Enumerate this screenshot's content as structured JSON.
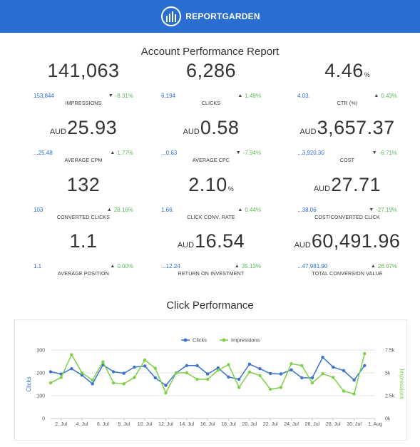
{
  "header": {
    "logo_text": "REPORTGARDEN"
  },
  "report_title": "Account Performance Report",
  "metrics": [
    {
      "currency": "",
      "value": "141,063",
      "unit": "",
      "prev": "153,844",
      "change": "-8.31%",
      "dir": "down",
      "label": "IMPRESSIONS"
    },
    {
      "currency": "",
      "value": "6,286",
      "unit": "",
      "prev": "6,194",
      "change": "1.49%",
      "dir": "up",
      "label": "CLICKS"
    },
    {
      "currency": "",
      "value": "4.46",
      "unit": "%",
      "prev": "4.03.",
      "change": "0.43%",
      "dir": "up",
      "label": "CTR (%)"
    },
    {
      "currency": "AUD",
      "value": "25.93",
      "unit": "",
      "prev": "...25.48",
      "change": "1.77%",
      "dir": "up",
      "label": "AVERAGE CPM"
    },
    {
      "currency": "AUD",
      "value": "0.58",
      "unit": "",
      "prev": "...0.63",
      "change": "-7.94%",
      "dir": "down",
      "label": "AVERAGE CPC"
    },
    {
      "currency": "AUD",
      "value": "3,657.37",
      "unit": "",
      "prev": "...3,920.30",
      "change": "-6.71%",
      "dir": "down",
      "label": "COST"
    },
    {
      "currency": "",
      "value": "132",
      "unit": "",
      "prev": "103",
      "change": "28.16%",
      "dir": "up",
      "label": "CONVERTED CLICKS"
    },
    {
      "currency": "",
      "value": "2.10",
      "unit": "%",
      "prev": "1.66.",
      "change": "0.44%",
      "dir": "up",
      "label": "CLICK CONV. RATE"
    },
    {
      "currency": "AUD",
      "value": "27.71",
      "unit": "",
      "prev": "...38.06",
      "change": "-27.19%",
      "dir": "down",
      "label": "COST/CONVERTED CLICK"
    },
    {
      "currency": "",
      "value": "1.1",
      "unit": "",
      "prev": "1.1",
      "change": "0.00%",
      "dir": "up",
      "label": "AVERAGE POSITION"
    },
    {
      "currency": "AUD",
      "value": "16.54",
      "unit": "",
      "prev": "...12.24",
      "change": "35.13%",
      "dir": "up",
      "label": "RETURN ON INVESTMENT"
    },
    {
      "currency": "AUD",
      "value": "60,491.96",
      "unit": "",
      "prev": "...47,981.90",
      "change": "26.07%",
      "dir": "up",
      "label": "TOTAL CONVERSION VALUE"
    }
  ],
  "chart_title": "Click Performance",
  "colors": {
    "header": "#2a6ed1",
    "clicks": "#3a73c9",
    "impressions": "#7ed04b",
    "up": "#5cb85c"
  },
  "chart_data": {
    "type": "line",
    "title": "Click Performance",
    "legend": "top-center",
    "x_tick_labels": [
      "2. Jul",
      "4. Jul",
      "6. Jul",
      "8. Jul",
      "10. Jul",
      "12. Jul",
      "14. Jul",
      "16. Jul",
      "18. Jul",
      "20. Jul",
      "22. Jul",
      "24. Jul",
      "26. Jul",
      "28. Jul",
      "30. Jul",
      "1. Aug"
    ],
    "x_start_day": 1,
    "x_end_day": 32,
    "y_left": {
      "label": "Clicks",
      "ticks": [
        "0",
        "100",
        "200",
        "300"
      ],
      "range": [
        0,
        300
      ]
    },
    "y_right": {
      "label": "Impressions",
      "ticks": [
        "0k",
        "2.5k",
        "5k",
        "7.5k"
      ],
      "range": [
        0,
        7500
      ]
    },
    "grid": true,
    "series": [
      {
        "name": "Clicks",
        "axis": "left",
        "values": [
          205,
          195,
          218,
          190,
          152,
          235,
          205,
          198,
          225,
          230,
          178,
          145,
          200,
          232,
          232,
          195,
          222,
          182,
          172,
          238,
          218,
          197,
          195,
          213,
          178,
          178,
          268,
          225,
          210,
          168,
          232
        ]
      },
      {
        "name": "Impressions",
        "axis": "right",
        "values": [
          3900,
          4500,
          7000,
          5000,
          4200,
          6200,
          3900,
          3800,
          4500,
          6400,
          5500,
          2800,
          5000,
          5000,
          4300,
          4300,
          5300,
          5900,
          3400,
          5100,
          4700,
          3200,
          3400,
          6000,
          5800,
          3900,
          4900,
          4500,
          3000,
          2700,
          7100
        ]
      }
    ]
  }
}
